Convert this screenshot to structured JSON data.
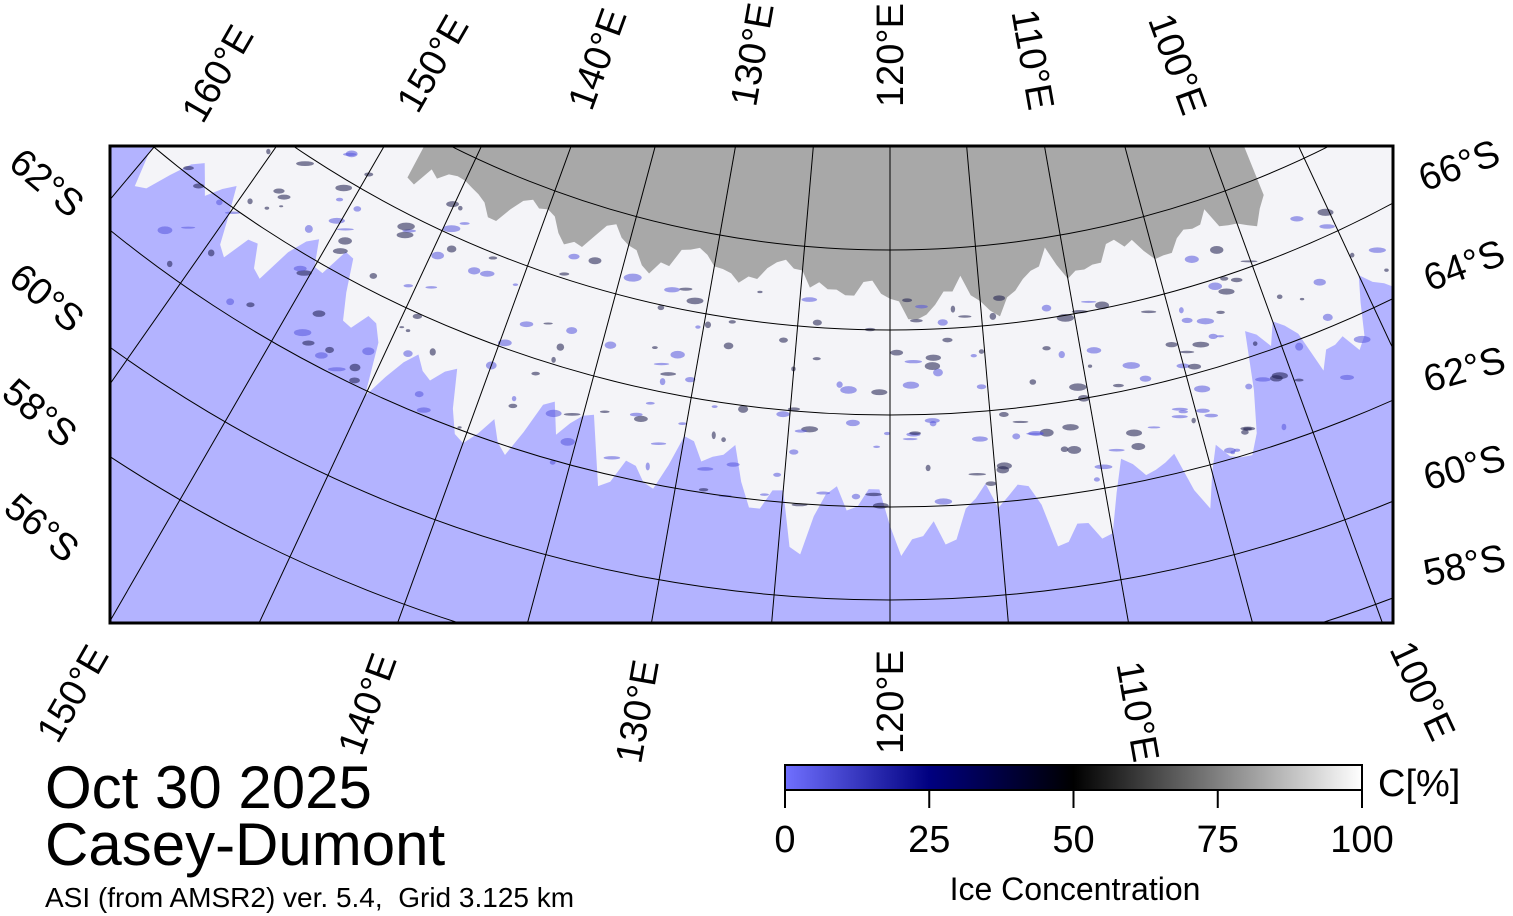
{
  "map": {
    "top_labels": [
      "160°E",
      "150°E",
      "140°E",
      "130°E",
      "120°E",
      "110°E",
      "100°E"
    ],
    "right_labels": [
      "66°S",
      "64°S",
      "62°S",
      "60°S",
      "58°S"
    ],
    "left_labels": [
      "62°S",
      "60°S",
      "58°S",
      "56°S"
    ],
    "bottom_labels": [
      "150°E",
      "140°E",
      "130°E",
      "120°E",
      "110°E",
      "100°E"
    ]
  },
  "header": {
    "date": "Oct 30 2025",
    "region": "Casey-Dumont",
    "source": "ASI (from AMSR2) ver. 5.4,  Grid 3.125 km"
  },
  "colorbar": {
    "title": "Ice Concentration",
    "unit": "C[%]",
    "range": [
      0,
      100
    ],
    "ticks": [
      0,
      25,
      50,
      75,
      100
    ]
  }
}
